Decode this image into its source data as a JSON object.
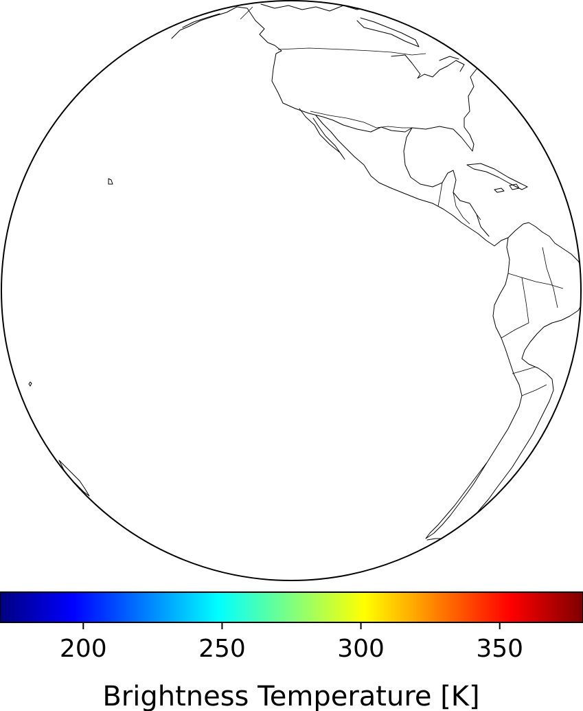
{
  "colorbar": {
    "label": "Brightness Temperature [K]",
    "colormap": "jet",
    "range": [
      170,
      380
    ],
    "ticks": [
      {
        "value": 200,
        "label": "200"
      },
      {
        "value": 250,
        "label": "250"
      },
      {
        "value": 300,
        "label": "300"
      },
      {
        "value": 350,
        "label": "350"
      }
    ],
    "colors": [
      "#00007f",
      "#0000ff",
      "#007fff",
      "#00ffff",
      "#7fff7f",
      "#ffff00",
      "#ff7f00",
      "#ff0000",
      "#7f0000"
    ]
  },
  "map": {
    "projection": "orthographic",
    "outline_color": "#000000",
    "fill_color": "#ffffff"
  }
}
